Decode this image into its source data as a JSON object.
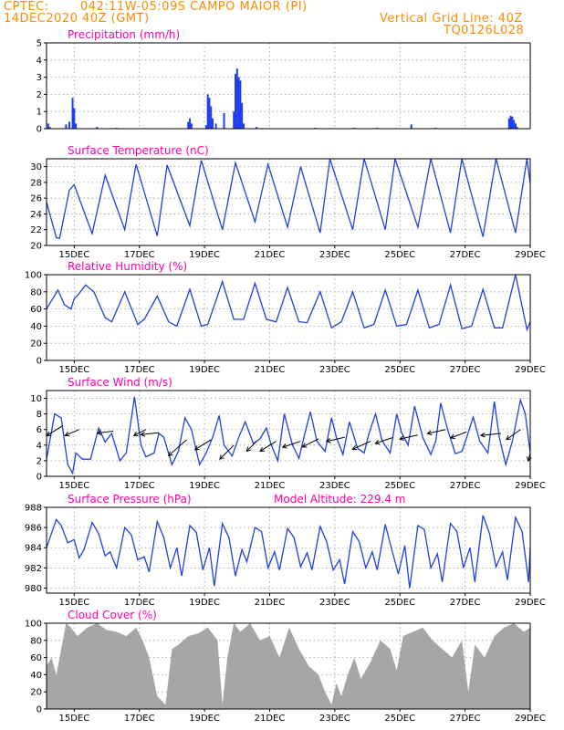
{
  "header": {
    "source": "CPTEC:",
    "location": "042:11W-05:09S  CAMPO MAIOR (PI)",
    "init_time": "14DEC2020 40Z (GMT)",
    "grid_note": "Vertical Grid Line: 40Z",
    "model_id": "TQ0126L028"
  },
  "colors": {
    "header": "#ff8c00",
    "title": "#ff00aa",
    "line": "#2040e0",
    "bar": "#1f3ff0",
    "cloud": "#a6a6a6"
  },
  "x_ticks": [
    "15DEC",
    "17DEC",
    "19DEC",
    "21DEC",
    "23DEC",
    "25DEC",
    "27DEC",
    "29DEC"
  ],
  "chart_data": [
    {
      "id": "precip",
      "type": "bar",
      "title": "Precipitation  (mm/h)",
      "ylim": [
        0,
        5
      ],
      "yticks": [
        0,
        1,
        2,
        3,
        4,
        5
      ],
      "xrange_days": [
        14.15,
        29.0
      ],
      "x_ticks_shown": false,
      "grid": true,
      "bars": [
        [
          14.2,
          0.3
        ],
        [
          14.25,
          0.1
        ],
        [
          14.75,
          0.25
        ],
        [
          14.85,
          0.4
        ],
        [
          14.95,
          1.8
        ],
        [
          15.0,
          1.2
        ],
        [
          15.05,
          0.3
        ],
        [
          15.7,
          0.1
        ],
        [
          16.3,
          0.05
        ],
        [
          18.5,
          0.4
        ],
        [
          18.55,
          0.6
        ],
        [
          18.6,
          0.3
        ],
        [
          19.05,
          0.2
        ],
        [
          19.1,
          2.0
        ],
        [
          19.15,
          1.8
        ],
        [
          19.2,
          1.3
        ],
        [
          19.25,
          0.6
        ],
        [
          19.35,
          0.3
        ],
        [
          19.6,
          0.9
        ],
        [
          19.9,
          1.0
        ],
        [
          19.95,
          3.2
        ],
        [
          20.0,
          3.5
        ],
        [
          20.05,
          3.0
        ],
        [
          20.1,
          2.8
        ],
        [
          20.15,
          1.5
        ],
        [
          20.2,
          0.3
        ],
        [
          20.6,
          0.1
        ],
        [
          22.4,
          0.05
        ],
        [
          23.6,
          0.05
        ],
        [
          24.3,
          0.05
        ],
        [
          25.35,
          0.25
        ],
        [
          26.1,
          0.05
        ],
        [
          28.35,
          0.6
        ],
        [
          28.4,
          0.75
        ],
        [
          28.45,
          0.7
        ],
        [
          28.5,
          0.5
        ],
        [
          28.55,
          0.3
        ],
        [
          28.6,
          0.1
        ]
      ]
    },
    {
      "id": "temp",
      "type": "line",
      "title": "Surface Temperature  (nC)",
      "ylim": [
        20,
        31
      ],
      "yticks": [
        20,
        22,
        24,
        26,
        28,
        30
      ],
      "xrange_days": [
        14.15,
        29.0
      ],
      "x_ticks_shown": true,
      "grid": true,
      "x": [
        14.15,
        14.45,
        14.55,
        14.85,
        15.0,
        15.55,
        15.95,
        16.55,
        16.9,
        17.55,
        17.85,
        18.55,
        18.9,
        19.55,
        19.95,
        20.55,
        20.95,
        21.55,
        21.95,
        22.55,
        22.85,
        23.55,
        23.9,
        24.55,
        24.85,
        25.55,
        25.95,
        26.55,
        26.9,
        27.55,
        27.95,
        28.55,
        28.9,
        29.0
      ],
      "y": [
        25.5,
        21.0,
        20.9,
        27.0,
        27.7,
        21.5,
        28.9,
        22.0,
        30.3,
        21.2,
        30.2,
        22.5,
        30.8,
        22.0,
        30.5,
        23.0,
        30.3,
        22.3,
        30.0,
        21.6,
        31.0,
        22.0,
        31.0,
        22.0,
        31.0,
        22.3,
        31.0,
        21.6,
        31.0,
        21.1,
        31.0,
        21.6,
        31.0,
        27.9
      ]
    },
    {
      "id": "rh",
      "type": "line",
      "title": "Relative Humidity  (%)",
      "ylim": [
        0,
        100
      ],
      "yticks": [
        0,
        20,
        40,
        60,
        80,
        100
      ],
      "xrange_days": [
        14.15,
        29.0
      ],
      "x_ticks_shown": true,
      "grid": true,
      "x": [
        14.15,
        14.5,
        14.7,
        14.9,
        15.0,
        15.15,
        15.35,
        15.6,
        15.95,
        16.15,
        16.55,
        16.95,
        17.15,
        17.55,
        17.9,
        18.15,
        18.55,
        18.9,
        19.1,
        19.55,
        19.9,
        20.2,
        20.55,
        20.9,
        21.2,
        21.55,
        21.9,
        22.15,
        22.55,
        22.9,
        23.2,
        23.55,
        23.9,
        24.2,
        24.55,
        24.9,
        25.2,
        25.55,
        25.9,
        26.2,
        26.55,
        26.9,
        27.2,
        27.55,
        27.9,
        28.15,
        28.55,
        28.9,
        29.0
      ],
      "y": [
        60,
        82,
        65,
        60,
        72,
        78,
        88,
        80,
        50,
        45,
        80,
        42,
        48,
        75,
        45,
        40,
        83,
        40,
        42,
        92,
        48,
        48,
        90,
        48,
        45,
        85,
        45,
        44,
        80,
        38,
        45,
        80,
        38,
        42,
        82,
        40,
        42,
        82,
        38,
        42,
        88,
        37,
        40,
        83,
        38,
        38,
        100,
        36,
        45
      ]
    },
    {
      "id": "wind",
      "type": "line",
      "title": "Surface Wind  (m/s)",
      "ylim": [
        0,
        11
      ],
      "yticks": [
        0,
        2,
        4,
        6,
        8,
        10
      ],
      "xrange_days": [
        14.15,
        29.0
      ],
      "x_ticks_shown": true,
      "grid": true,
      "x": [
        14.15,
        14.4,
        14.6,
        14.8,
        14.95,
        15.05,
        15.25,
        15.5,
        15.75,
        15.95,
        16.15,
        16.4,
        16.6,
        16.85,
        17.05,
        17.2,
        17.45,
        17.6,
        17.75,
        18.0,
        18.2,
        18.4,
        18.6,
        18.85,
        19.05,
        19.25,
        19.45,
        19.6,
        19.85,
        20.05,
        20.25,
        20.5,
        20.7,
        20.9,
        21.05,
        21.25,
        21.45,
        21.7,
        21.9,
        22.05,
        22.25,
        22.45,
        22.7,
        22.9,
        23.05,
        23.25,
        23.45,
        23.7,
        23.9,
        24.05,
        24.25,
        24.45,
        24.7,
        24.9,
        25.05,
        25.25,
        25.45,
        25.7,
        25.95,
        26.1,
        26.25,
        26.45,
        26.7,
        26.9,
        27.05,
        27.25,
        27.45,
        27.7,
        27.9,
        28.05,
        28.25,
        28.45,
        28.7,
        28.85,
        29.0
      ],
      "y": [
        2.2,
        8.0,
        7.5,
        1.5,
        0.4,
        3.0,
        2.2,
        2.2,
        6.2,
        4.4,
        5.5,
        2.0,
        3.0,
        10.2,
        4.0,
        2.5,
        3.0,
        5.5,
        5.0,
        1.5,
        3.2,
        7.5,
        6.0,
        1.5,
        3.0,
        5.0,
        7.8,
        4.0,
        2.6,
        5.0,
        7.0,
        4.2,
        4.8,
        6.2,
        4.0,
        2.0,
        8.0,
        4.0,
        2.3,
        5.0,
        8.3,
        4.5,
        3.2,
        7.5,
        5.0,
        2.8,
        7.0,
        3.6,
        3.0,
        5.5,
        8.0,
        4.6,
        3.0,
        8.0,
        5.6,
        4.0,
        9.0,
        5.0,
        2.8,
        4.5,
        9.4,
        6.2,
        2.9,
        3.2,
        5.0,
        7.6,
        4.5,
        3.0,
        9.6,
        5.0,
        1.5,
        4.5,
        9.8,
        8.0,
        3.0
      ],
      "arrows": [
        [
          14.65,
          6.5,
          -0.8,
          -0.5
        ],
        [
          15.15,
          6.0,
          -0.7,
          -0.3
        ],
        [
          16.2,
          5.8,
          -0.8,
          -0.1
        ],
        [
          17.2,
          6.0,
          -0.6,
          -0.3
        ],
        [
          17.6,
          5.6,
          -0.9,
          -0.1
        ],
        [
          18.45,
          4.7,
          -0.9,
          -0.8
        ],
        [
          19.2,
          4.7,
          -0.8,
          -0.5
        ],
        [
          19.9,
          4.0,
          -0.7,
          -0.7
        ],
        [
          20.6,
          4.5,
          -0.5,
          -0.5
        ],
        [
          21.2,
          4.5,
          -0.8,
          -0.5
        ],
        [
          21.95,
          4.5,
          -0.9,
          -0.3
        ],
        [
          22.5,
          4.8,
          -0.8,
          -0.4
        ],
        [
          23.3,
          5.0,
          -0.9,
          -0.2
        ],
        [
          24.1,
          4.5,
          -0.9,
          -0.4
        ],
        [
          24.8,
          5.0,
          -0.9,
          -0.3
        ],
        [
          25.55,
          5.3,
          -0.9,
          -0.2
        ],
        [
          26.4,
          6.0,
          -0.9,
          -0.2
        ],
        [
          27.05,
          5.7,
          -0.8,
          -0.3
        ],
        [
          28.1,
          5.5,
          -1.0,
          -0.1
        ],
        [
          28.7,
          6.0,
          -0.7,
          -0.5
        ],
        [
          29.0,
          3.0,
          -0.1,
          -0.4
        ]
      ]
    },
    {
      "id": "pressure",
      "type": "line",
      "title": "Surface Pressure  (hPa)",
      "annotation": "Model Altitude: 229.4  m",
      "ylim": [
        979.5,
        988
      ],
      "yticks": [
        980,
        982,
        984,
        986,
        988
      ],
      "xrange_days": [
        14.15,
        29.0
      ],
      "x_ticks_shown": true,
      "grid": true,
      "x": [
        14.15,
        14.45,
        14.6,
        14.8,
        15.0,
        15.15,
        15.3,
        15.55,
        15.75,
        15.95,
        16.1,
        16.3,
        16.55,
        16.75,
        16.95,
        17.15,
        17.3,
        17.55,
        17.75,
        17.95,
        18.15,
        18.3,
        18.55,
        18.75,
        18.95,
        19.15,
        19.3,
        19.55,
        19.75,
        19.95,
        20.15,
        20.3,
        20.55,
        20.75,
        20.95,
        21.15,
        21.3,
        21.55,
        21.75,
        21.95,
        22.15,
        22.3,
        22.55,
        22.75,
        22.95,
        23.15,
        23.3,
        23.55,
        23.75,
        23.95,
        24.15,
        24.3,
        24.55,
        24.75,
        24.95,
        25.15,
        25.3,
        25.55,
        25.75,
        25.95,
        26.15,
        26.3,
        26.55,
        26.75,
        26.95,
        27.15,
        27.3,
        27.55,
        27.75,
        27.95,
        28.15,
        28.3,
        28.55,
        28.75,
        28.95,
        29.0
      ],
      "y": [
        984.0,
        986.8,
        986.2,
        984.5,
        984.8,
        983.0,
        983.8,
        986.5,
        985.4,
        983.2,
        983.6,
        982.0,
        986.0,
        985.3,
        982.8,
        983.1,
        981.6,
        986.6,
        985.0,
        982.0,
        984.0,
        981.2,
        986.2,
        985.5,
        981.8,
        984.0,
        980.2,
        986.4,
        985.0,
        981.2,
        983.8,
        982.6,
        986.0,
        985.6,
        982.0,
        983.6,
        981.8,
        985.9,
        985.0,
        982.1,
        983.5,
        981.8,
        986.1,
        984.6,
        981.8,
        982.8,
        980.4,
        985.6,
        984.6,
        982.0,
        983.6,
        981.8,
        986.3,
        983.8,
        981.4,
        984.2,
        980.0,
        986.2,
        985.8,
        982.0,
        983.4,
        980.6,
        986.4,
        985.6,
        982.0,
        984.0,
        980.6,
        987.2,
        985.4,
        982.1,
        983.6,
        980.8,
        987.0,
        985.6,
        980.6,
        984.0
      ]
    },
    {
      "id": "cloud",
      "type": "area",
      "title": "Cloud Cover  (%)",
      "ylim": [
        0,
        100
      ],
      "yticks": [
        0,
        20,
        40,
        60,
        80,
        100
      ],
      "xrange_days": [
        14.15,
        29.0
      ],
      "x_ticks_shown": true,
      "grid": true,
      "x": [
        14.15,
        14.3,
        14.45,
        14.6,
        14.75,
        14.9,
        15.1,
        15.4,
        15.7,
        16.0,
        16.3,
        16.6,
        16.9,
        17.1,
        17.3,
        17.55,
        17.8,
        18.0,
        18.2,
        18.5,
        18.8,
        19.1,
        19.4,
        19.55,
        19.7,
        19.9,
        20.1,
        20.4,
        20.7,
        21.0,
        21.3,
        21.6,
        21.9,
        22.2,
        22.5,
        22.7,
        22.9,
        23.05,
        23.2,
        23.4,
        23.6,
        23.8,
        24.1,
        24.4,
        24.7,
        24.9,
        25.1,
        25.4,
        25.7,
        26.0,
        26.3,
        26.6,
        26.9,
        27.1,
        27.3,
        27.6,
        27.9,
        28.2,
        28.5,
        28.8,
        29.0
      ],
      "y": [
        50,
        60,
        40,
        70,
        100,
        95,
        85,
        95,
        100,
        92,
        90,
        85,
        95,
        80,
        60,
        15,
        5,
        70,
        75,
        85,
        88,
        95,
        80,
        5,
        60,
        100,
        90,
        100,
        80,
        85,
        60,
        95,
        70,
        50,
        40,
        20,
        5,
        30,
        15,
        40,
        60,
        35,
        55,
        80,
        70,
        45,
        85,
        90,
        95,
        80,
        70,
        60,
        80,
        20,
        75,
        60,
        85,
        95,
        100,
        90,
        95
      ]
    }
  ]
}
